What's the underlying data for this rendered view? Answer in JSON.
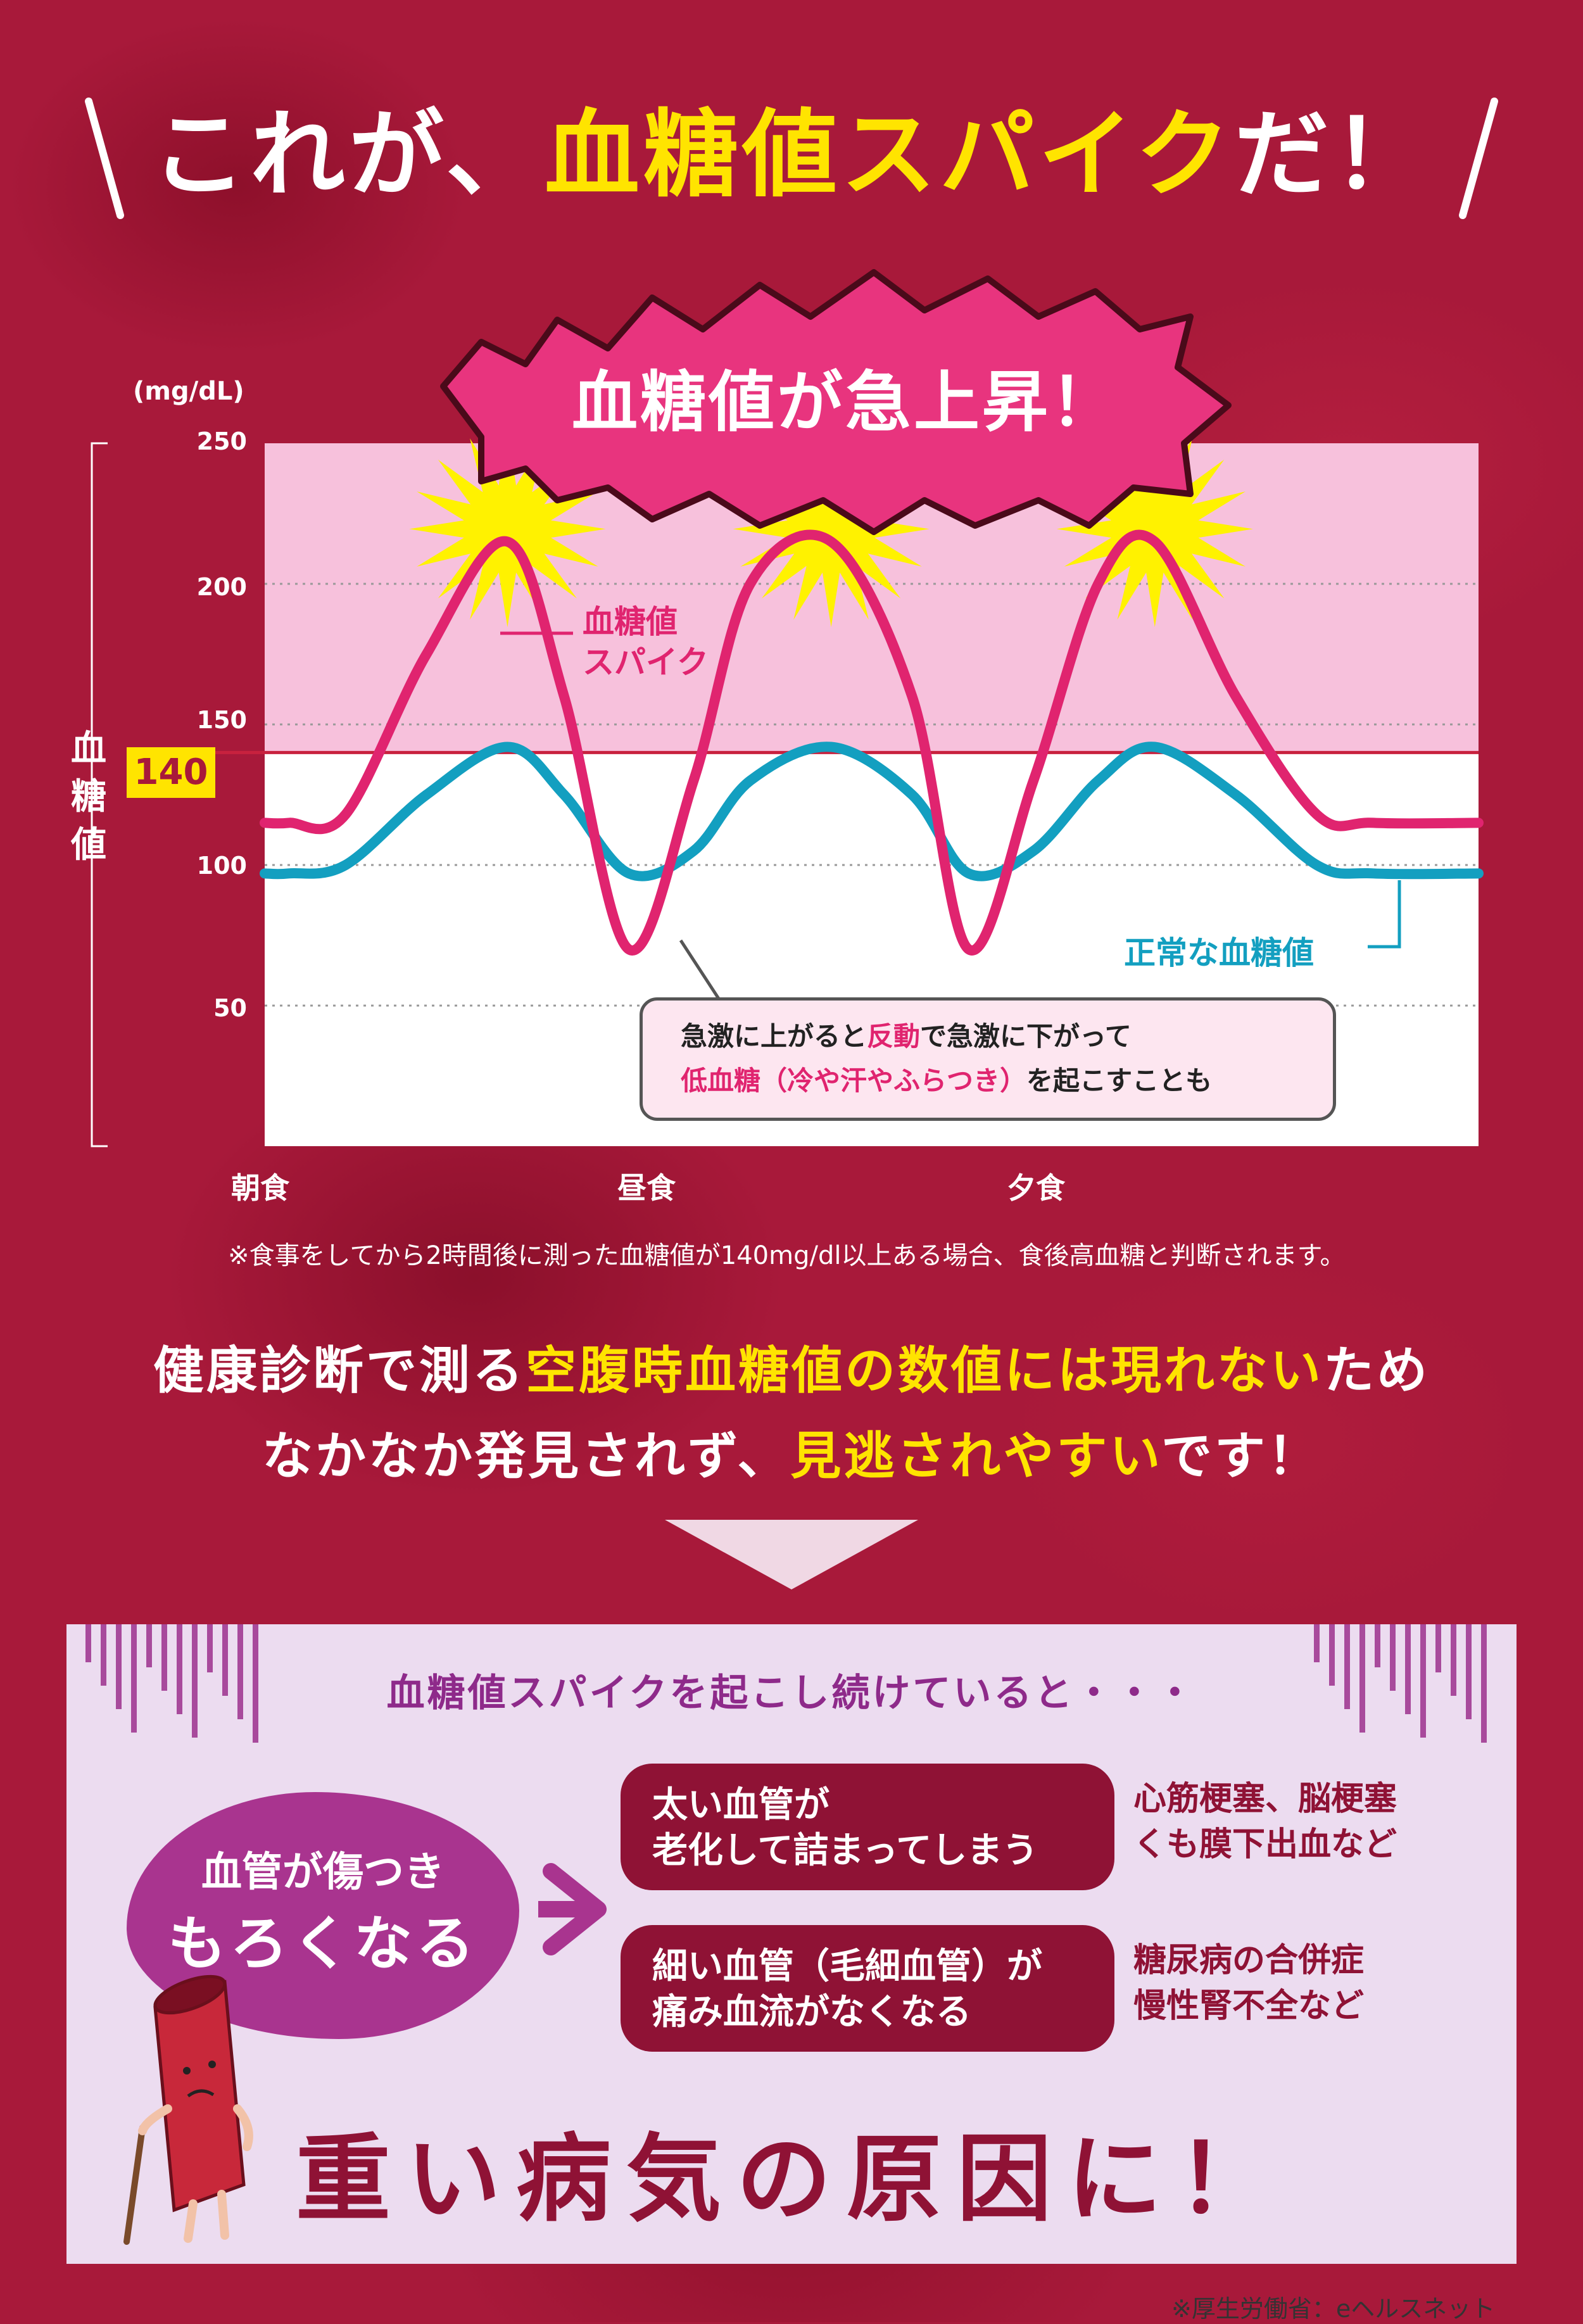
{
  "headline": {
    "pre": "これが、",
    "highlight": "血糖値スパイク",
    "post": "だ！"
  },
  "burst": {
    "text": "血糖値が急上昇！"
  },
  "chart_data": {
    "type": "line",
    "unit_label": "(mg/dL)",
    "ylabel": "血糖値",
    "ylim": [
      0,
      250
    ],
    "y_ticks": [
      "250",
      "200",
      "150",
      "100",
      "50"
    ],
    "threshold": {
      "value": 140,
      "label": "140"
    },
    "x_labels": [
      "朝食",
      "昼食",
      "夕食"
    ],
    "x": [
      0,
      0.3,
      1.0,
      2.0,
      3.0,
      3.7,
      4.5,
      5.3,
      6.0,
      7.0,
      8.0,
      8.7,
      9.5,
      10.3,
      11.0,
      12.0,
      13.0,
      13.7,
      15.0
    ],
    "series": [
      {
        "name": "血糖値スパイク",
        "color": "#e0246f",
        "values": [
          115,
          115,
          118,
          175,
          215,
          160,
          70,
          130,
          200,
          215,
          160,
          70,
          130,
          200,
          215,
          160,
          118,
          115,
          115
        ]
      },
      {
        "name": "正常な血糖値",
        "color": "#139fc0",
        "values": [
          97,
          97,
          100,
          125,
          142,
          125,
          97,
          105,
          130,
          142,
          125,
          97,
          105,
          130,
          142,
          125,
          100,
          97,
          97
        ]
      }
    ],
    "spike_label": [
      "血糖値",
      "スパイク"
    ],
    "normal_label": "正常な血糖値",
    "callout": {
      "line1_a": "急激に上がると",
      "line1_b": "反動",
      "line1_c": "で急激に下がって",
      "line2_a": "低血糖（冷や汗やふらつき）",
      "line2_b": "を起こすことも"
    },
    "footnote": "※食事をしてから2時間後に測った血糖値が140mg/dl以上ある場合、食後高血糖と判断されます。"
  },
  "body": {
    "line1_a": "健康診断で測る",
    "line1_b": "空腹時血糖値の数値には現れない",
    "line1_c": "ため",
    "line2_a": "なかなか発見されず、",
    "line2_b": "見逃されやすい",
    "line2_c": "です！"
  },
  "effects": {
    "title": "血糖値スパイクを起こし続けていると・・・",
    "blob_line1": "血管が傷つき",
    "blob_line2": "もろくなる",
    "items": [
      {
        "cause_1": "太い血管が",
        "cause_2": "老化して詰まってしまう",
        "result_1": "心筋梗塞、脳梗塞",
        "result_2": "くも膜下出血など"
      },
      {
        "cause_1": "細い血管（毛細血管）が",
        "cause_2": "痛み血流がなくなる",
        "result_1": "糖尿病の合併症",
        "result_2": "慢性腎不全など"
      }
    ],
    "conclusion": "重い病気の原因に！",
    "source": "※厚生労働省：eヘルスネット"
  },
  "colors": {
    "background": "#a8193a",
    "accent_yellow": "#ffe400",
    "spike": "#e0246f",
    "normal": "#139fc0",
    "panel": "#ecdcf0",
    "dark_red": "#8f1235"
  }
}
